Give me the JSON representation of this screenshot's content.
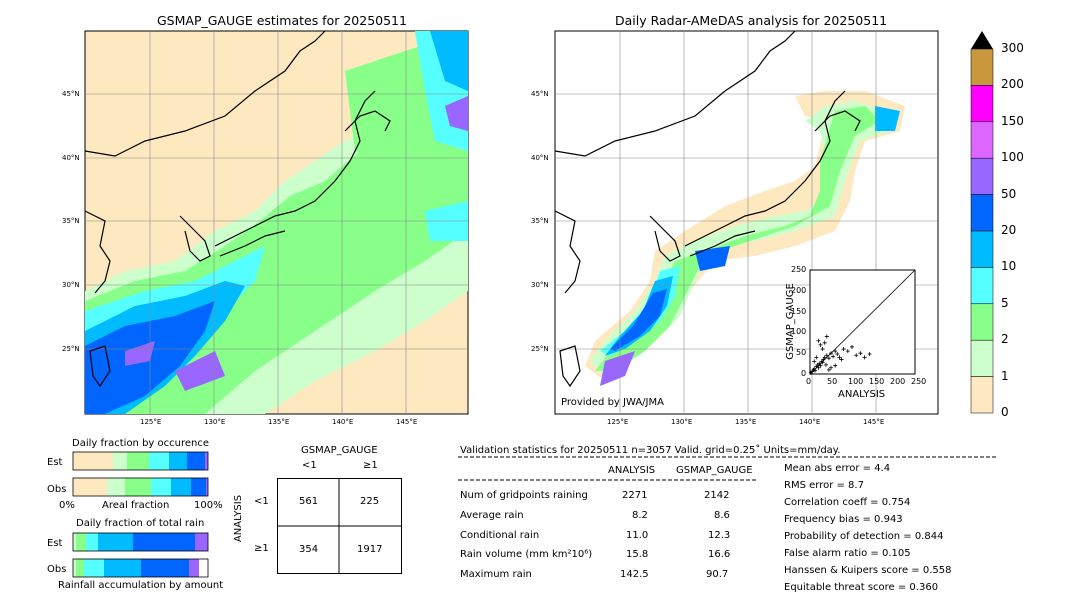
{
  "left_map": {
    "title": "GSMAP_GAUGE estimates for 20250511",
    "lat_labels": [
      "45°N",
      "40°N",
      "35°N",
      "30°N",
      "25°N"
    ],
    "lon_labels": [
      "125°E",
      "130°E",
      "135°E",
      "140°E",
      "145°E"
    ]
  },
  "right_map": {
    "title": "Daily Radar-AMeDAS analysis for 20250511",
    "lat_labels": [
      "45°N",
      "40°N",
      "35°N",
      "30°N",
      "25°N"
    ],
    "lon_labels": [
      "125°E",
      "130°E",
      "135°E",
      "140°E",
      "145°E"
    ],
    "credit": "Provided by JWA/JMA"
  },
  "colorbar": {
    "labels": [
      "300",
      "200",
      "150",
      "100",
      "50",
      "20",
      "10",
      "5",
      "2",
      "1",
      "0"
    ],
    "colors": [
      "#c8963c",
      "#ff00ff",
      "#dd66ff",
      "#9966ff",
      "#0066ff",
      "#00bbff",
      "#55ffff",
      "#88ff88",
      "#ccffcc",
      "#fde8c0"
    ]
  },
  "occurrence": {
    "title": "Daily fraction by occurence",
    "row_est": "Est",
    "row_obs": "Obs",
    "axis_left": "0%",
    "axis_mid": "Areal fraction",
    "axis_right": "100%"
  },
  "total_rain": {
    "title": "Daily fraction of total rain",
    "row_est": "Est",
    "row_obs": "Obs",
    "footer": "Rainfall accumulation by amount"
  },
  "contingency": {
    "col_title": "GSMAP_GAUGE",
    "col_lt": "<1",
    "col_ge": "≥1",
    "row_title": "ANALYSIS",
    "row_lt": "<1",
    "row_ge": "≥1",
    "cells": [
      "561",
      "225",
      "354",
      "1917"
    ]
  },
  "validation": {
    "header": "Validation statistics for 20250511  n=3057 Valid. grid=0.25˚ Units=mm/day.",
    "col_analysis": "ANALYSIS",
    "col_gsmap": "GSMAP_GAUGE",
    "rows": [
      {
        "label": "Num of gridpoints raining",
        "analysis": "2271",
        "gsmap": "2142"
      },
      {
        "label": "Average rain",
        "analysis": "8.2",
        "gsmap": "8.6"
      },
      {
        "label": "Conditional rain",
        "analysis": "11.0",
        "gsmap": "12.3"
      },
      {
        "label": "Rain volume (mm km²10⁶)",
        "analysis": "15.8",
        "gsmap": "16.6"
      },
      {
        "label": "Maximum rain",
        "analysis": "142.5",
        "gsmap": "90.7"
      }
    ],
    "scores": [
      "Mean abs error =    4.4",
      "RMS error =    8.7",
      "Correlation coeff =  0.754",
      "Frequency bias =  0.943",
      "Probability of detection =  0.844",
      "False alarm ratio =  0.105",
      "Hanssen & Kuipers score =  0.558",
      "Equitable threat score =  0.360"
    ]
  },
  "chart_data": {
    "type": "scatter",
    "xlabel": "ANALYSIS",
    "ylabel": "GSMAP_GAUGE",
    "xlim": [
      0,
      250
    ],
    "ylim": [
      0,
      250
    ],
    "x_ticks": [
      "0",
      "50",
      "100",
      "150",
      "200",
      "250"
    ],
    "y_ticks": [
      "0",
      "50",
      "100",
      "150",
      "200",
      "250"
    ],
    "x": [
      2,
      5,
      8,
      10,
      12,
      15,
      18,
      20,
      22,
      25,
      28,
      30,
      32,
      35,
      38,
      40,
      45,
      50,
      55,
      60,
      65,
      70,
      80,
      90,
      100,
      110,
      120,
      130,
      142,
      30,
      25,
      20,
      35,
      40,
      15,
      10,
      60,
      75,
      50,
      45
    ],
    "y": [
      3,
      6,
      10,
      12,
      8,
      18,
      22,
      15,
      25,
      20,
      30,
      28,
      35,
      40,
      22,
      45,
      38,
      50,
      42,
      55,
      48,
      40,
      60,
      55,
      65,
      45,
      50,
      40,
      48,
      60,
      70,
      80,
      75,
      90,
      40,
      30,
      20,
      35,
      15,
      10
    ]
  }
}
